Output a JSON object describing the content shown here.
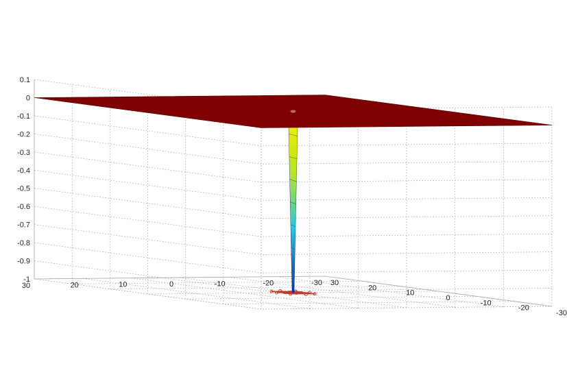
{
  "chart_data": {
    "type": "surface3d",
    "title": "",
    "xlabel": "",
    "ylabel": "",
    "zlabel": "",
    "grid": true,
    "xlim": [
      -30,
      30
    ],
    "ylim": [
      -30,
      30
    ],
    "zlim": [
      -1,
      0.1
    ],
    "x_ticks": [
      "-30",
      "-20",
      "-10",
      "0",
      "10",
      "20",
      "30"
    ],
    "y_ticks": [
      "-30",
      "-20",
      "-10",
      "0",
      "10",
      "20",
      "30"
    ],
    "z_ticks": [
      "-1",
      "-0.9",
      "-0.8",
      "-0.7",
      "-0.6",
      "-0.5",
      "-0.4",
      "-0.3",
      "-0.2",
      "-0.1",
      "0",
      "0.1"
    ],
    "surface": {
      "plateau_z": 0,
      "plateau_color": "#7f0000",
      "spike": {
        "x": 0,
        "y": 0,
        "z_min": -1
      }
    },
    "contour_z": -1,
    "contour_color": "#c0392b"
  }
}
